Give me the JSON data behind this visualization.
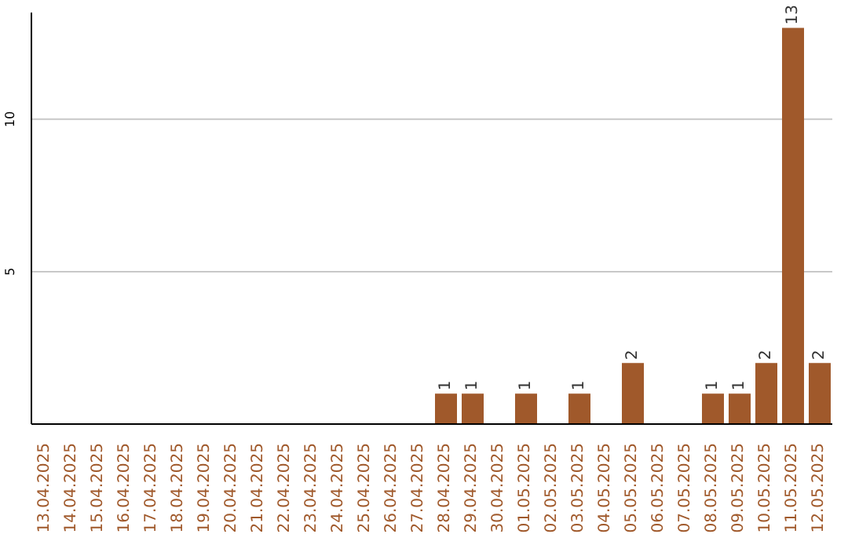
{
  "chart_data": {
    "type": "bar",
    "categories": [
      "13.04.2025",
      "14.04.2025",
      "15.04.2025",
      "16.04.2025",
      "17.04.2025",
      "18.04.2025",
      "19.04.2025",
      "20.04.2025",
      "21.04.2025",
      "22.04.2025",
      "23.04.2025",
      "24.04.2025",
      "25.04.2025",
      "26.04.2025",
      "27.04.2025",
      "28.04.2025",
      "29.04.2025",
      "30.04.2025",
      "01.05.2025",
      "02.05.2025",
      "03.05.2025",
      "04.05.2025",
      "05.05.2025",
      "06.05.2025",
      "07.05.2025",
      "08.05.2025",
      "09.05.2025",
      "10.05.2025",
      "11.05.2025",
      "12.05.2025"
    ],
    "values": [
      0,
      0,
      0,
      0,
      0,
      0,
      0,
      0,
      0,
      0,
      0,
      0,
      0,
      0,
      0,
      1,
      1,
      0,
      1,
      0,
      1,
      0,
      2,
      0,
      0,
      1,
      1,
      2,
      13,
      2
    ],
    "value_labels": [
      null,
      null,
      null,
      null,
      null,
      null,
      null,
      null,
      null,
      null,
      null,
      null,
      null,
      null,
      null,
      "1",
      "1",
      null,
      "1",
      null,
      "1",
      null,
      "2",
      null,
      null,
      "1",
      "1",
      "2",
      "13",
      "2"
    ],
    "color": "#a0592b",
    "ylim": [
      0,
      13.5
    ],
    "yticks": [
      5,
      10
    ],
    "grid": "y"
  }
}
